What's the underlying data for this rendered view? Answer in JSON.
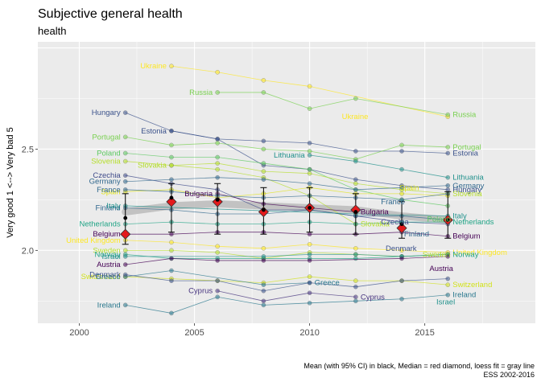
{
  "chart_data": {
    "type": "line",
    "title": "Subjective general health",
    "subtitle": "health",
    "ylabel": "Very good 1 <--> Very bad 5",
    "xlabel": "",
    "caption": [
      "Mean (with 95% CI) in black, Median = red diamond, loess fit = gray line",
      "ESS 2002-2016"
    ],
    "xlim": [
      1998.2,
      2019.8
    ],
    "ylim": [
      1.64,
      3.03
    ],
    "x_ticks": [
      2000,
      2005,
      2010,
      2015
    ],
    "y_ticks": [
      2.0,
      2.5
    ],
    "x_tick_labels": [
      "2000",
      "2005",
      "2010",
      "2015"
    ],
    "y_tick_labels": [
      "2.0",
      "2.5"
    ],
    "grid": true,
    "series": [
      {
        "name": "Ukraine",
        "color": "#fde725",
        "points": [
          [
            2004,
            2.91
          ],
          [
            2006,
            2.88
          ],
          [
            2008,
            2.84
          ],
          [
            2010,
            2.81
          ],
          [
            2016,
            2.66
          ]
        ],
        "label_start": "Ukraine",
        "label_end": "Ukraine",
        "label_end_pos": [
          2011.4,
          2.66
        ]
      },
      {
        "name": "Russia",
        "color": "#7ad151",
        "points": [
          [
            2006,
            2.78
          ],
          [
            2008,
            2.78
          ],
          [
            2010,
            2.7
          ],
          [
            2012,
            2.75
          ],
          [
            2016,
            2.67
          ]
        ],
        "label_start": "Russia",
        "label_end": "Russia"
      },
      {
        "name": "Hungary",
        "color": "#3b528b",
        "points": [
          [
            2002,
            2.68
          ],
          [
            2004,
            2.59
          ],
          [
            2006,
            2.55
          ],
          [
            2008,
            2.42
          ],
          [
            2010,
            2.4
          ],
          [
            2012,
            2.35
          ],
          [
            2014,
            2.32
          ],
          [
            2016,
            2.3
          ]
        ],
        "label_start": "Hungary",
        "label_end": "Hungary"
      },
      {
        "name": "Estonia",
        "color": "#3b528b",
        "points": [
          [
            2004,
            2.59
          ],
          [
            2006,
            2.55
          ],
          [
            2008,
            2.54
          ],
          [
            2010,
            2.53
          ],
          [
            2012,
            2.49
          ],
          [
            2014,
            2.49
          ],
          [
            2016,
            2.48
          ]
        ],
        "label_start": "Estonia",
        "label_end": "Estonia"
      },
      {
        "name": "Portugal",
        "color": "#7ad151",
        "points": [
          [
            2002,
            2.56
          ],
          [
            2004,
            2.52
          ],
          [
            2006,
            2.53
          ],
          [
            2008,
            2.5
          ],
          [
            2010,
            2.49
          ],
          [
            2012,
            2.45
          ],
          [
            2014,
            2.52
          ],
          [
            2016,
            2.51
          ]
        ],
        "label_start": "Portugal",
        "label_end": "Portugal"
      },
      {
        "name": "Poland",
        "color": "#5ec962",
        "points": [
          [
            2002,
            2.48
          ],
          [
            2004,
            2.46
          ],
          [
            2006,
            2.46
          ],
          [
            2008,
            2.43
          ],
          [
            2010,
            2.4
          ],
          [
            2012,
            2.3
          ],
          [
            2014,
            2.25
          ],
          [
            2016,
            2.22
          ]
        ],
        "label_start": "Poland",
        "label_end": "Poland",
        "label_end_pos": [
          2015.1,
          2.155
        ]
      },
      {
        "name": "Slovenia",
        "color": "#b5de2b",
        "points": [
          [
            2002,
            2.44
          ],
          [
            2004,
            2.42
          ],
          [
            2006,
            2.43
          ],
          [
            2008,
            2.39
          ],
          [
            2010,
            2.38
          ],
          [
            2012,
            2.33
          ],
          [
            2014,
            2.3
          ],
          [
            2016,
            2.28
          ]
        ],
        "label_start": "Slovenia",
        "label_end": "Slovenia"
      },
      {
        "name": "Lithuania",
        "color": "#21918c",
        "points": [
          [
            2010,
            2.47
          ],
          [
            2012,
            2.44
          ],
          [
            2014,
            2.4
          ],
          [
            2016,
            2.36
          ]
        ],
        "label_start": "Lithuania",
        "label_end": "Lithuania"
      },
      {
        "name": "Slovakia",
        "color": "#b5de2b",
        "points": [
          [
            2004,
            2.42
          ],
          [
            2006,
            2.4
          ],
          [
            2008,
            2.36
          ],
          [
            2010,
            2.27
          ],
          [
            2012,
            2.13
          ]
        ],
        "label_start": "Slovakia",
        "label_end": "Slovakia"
      },
      {
        "name": "Czechia",
        "color": "#3e4a89",
        "points": [
          [
            2002,
            2.37
          ],
          [
            2004,
            2.33
          ],
          [
            2006,
            2.3
          ],
          [
            2008,
            2.2
          ],
          [
            2010,
            2.2
          ],
          [
            2012,
            2.17
          ],
          [
            2014,
            2.14
          ],
          [
            2016,
            2.13
          ]
        ],
        "label_start": "Czechia",
        "label_end": "Czechia",
        "label_end_pos": [
          2013.1,
          2.14
        ]
      },
      {
        "name": "Germany",
        "color": "#31688e",
        "points": [
          [
            2002,
            2.34
          ],
          [
            2004,
            2.35
          ],
          [
            2006,
            2.36
          ],
          [
            2008,
            2.35
          ],
          [
            2010,
            2.33
          ],
          [
            2012,
            2.3
          ],
          [
            2014,
            2.31
          ],
          [
            2016,
            2.32
          ]
        ],
        "label_start": "Germany",
        "label_end": "Germany"
      },
      {
        "name": "Bulgaria",
        "color": "#440154",
        "points": [
          [
            2006,
            2.28
          ],
          [
            2008,
            2.23
          ],
          [
            2010,
            2.21
          ],
          [
            2012,
            2.19
          ]
        ],
        "label_start": "Bulgaria",
        "label_end": "Bulgaria"
      },
      {
        "name": "Spain",
        "color": "#e2e418",
        "points": [
          [
            2002,
            2.29
          ],
          [
            2004,
            2.3
          ],
          [
            2006,
            2.26
          ],
          [
            2008,
            2.28
          ],
          [
            2010,
            2.31
          ],
          [
            2012,
            2.28
          ],
          [
            2014,
            2.28
          ],
          [
            2016,
            2.27
          ]
        ],
        "label_start": "Spain",
        "label_end": "Spain",
        "label_end_pos": [
          2013.9,
          2.31
        ]
      },
      {
        "name": "France",
        "color": "#31688e",
        "points": [
          [
            2002,
            2.3
          ],
          [
            2004,
            2.29
          ],
          [
            2006,
            2.27
          ],
          [
            2008,
            2.26
          ],
          [
            2010,
            2.27
          ],
          [
            2012,
            2.26
          ],
          [
            2014,
            2.25
          ],
          [
            2016,
            2.28
          ]
        ],
        "label_start": "France",
        "label_end": "France",
        "label_end_pos": [
          2013.1,
          2.24
        ]
      },
      {
        "name": "Finland",
        "color": "#31688e",
        "points": [
          [
            2002,
            2.21
          ],
          [
            2004,
            2.2
          ],
          [
            2006,
            2.18
          ],
          [
            2008,
            2.18
          ],
          [
            2010,
            2.2
          ],
          [
            2012,
            2.17
          ],
          [
            2014,
            2.17
          ],
          [
            2016,
            2.15
          ]
        ],
        "label_start": "Finland",
        "label_end": "Finland",
        "label_end_pos": [
          2014.1,
          2.08
        ]
      },
      {
        "name": "Italy",
        "color": "#21918c",
        "points": [
          [
            2002,
            2.22
          ],
          [
            2012,
            2.18
          ],
          [
            2016,
            2.17
          ]
        ],
        "label_start": "Italy",
        "label_end": "Italy"
      },
      {
        "name": "Netherlands",
        "color": "#20a486",
        "points": [
          [
            2002,
            2.13
          ],
          [
            2004,
            2.14
          ],
          [
            2006,
            2.13
          ],
          [
            2008,
            2.13
          ],
          [
            2010,
            2.14
          ],
          [
            2012,
            2.13
          ],
          [
            2014,
            2.14
          ],
          [
            2016,
            2.14
          ]
        ],
        "label_start": "Netherlands",
        "label_end": "Netherlands"
      },
      {
        "name": "Belgium",
        "color": "#440154",
        "points": [
          [
            2002,
            2.08
          ],
          [
            2004,
            2.08
          ],
          [
            2006,
            2.09
          ],
          [
            2008,
            2.09
          ],
          [
            2010,
            2.08
          ],
          [
            2012,
            2.08
          ],
          [
            2014,
            2.09
          ],
          [
            2016,
            2.07
          ]
        ],
        "label_start": "Belgium",
        "label_end": "Belgium"
      },
      {
        "name": "United Kingdom",
        "color": "#fde725",
        "points": [
          [
            2002,
            2.05
          ],
          [
            2004,
            2.04
          ],
          [
            2006,
            2.02
          ],
          [
            2008,
            2.01
          ],
          [
            2010,
            2.03
          ],
          [
            2012,
            2.01
          ],
          [
            2014,
            2.0
          ],
          [
            2016,
            1.99
          ]
        ],
        "label_start": "United Kingdom",
        "label_end": "United Kingdom"
      },
      {
        "name": "Sweden",
        "color": "#b5de2b",
        "points": [
          [
            2002,
            2.0
          ],
          [
            2004,
            2.0
          ],
          [
            2006,
            1.99
          ],
          [
            2008,
            1.96
          ],
          [
            2010,
            1.99
          ],
          [
            2012,
            1.98
          ],
          [
            2014,
            1.97
          ],
          [
            2016,
            1.98
          ]
        ],
        "label_start": "Sweden",
        "label_end": "Sweden",
        "label_end_pos": [
          2014.9,
          1.98
        ]
      },
      {
        "name": "Norway",
        "color": "#20a486",
        "points": [
          [
            2002,
            1.98
          ],
          [
            2004,
            1.96
          ],
          [
            2006,
            1.96
          ],
          [
            2008,
            1.96
          ],
          [
            2010,
            1.96
          ],
          [
            2012,
            1.96
          ],
          [
            2014,
            1.97
          ],
          [
            2016,
            1.98
          ]
        ],
        "label_start": "Norway",
        "label_end": "Norway"
      },
      {
        "name": "Israel",
        "color": "#21918c",
        "points": [
          [
            2002,
            1.97
          ],
          [
            2008,
            1.97
          ],
          [
            2010,
            1.98
          ],
          [
            2012,
            1.98
          ],
          [
            2014,
            1.97
          ],
          [
            2016,
            1.98
          ]
        ],
        "label_start": "Israel",
        "label_end": "Israel",
        "label_end_pos": [
          2015.5,
          1.745
        ]
      },
      {
        "name": "Austria",
        "color": "#440154",
        "points": [
          [
            2002,
            1.93
          ],
          [
            2004,
            1.96
          ],
          [
            2006,
            1.95
          ],
          [
            2008,
            1.95
          ],
          [
            2010,
            1.95
          ],
          [
            2014,
            1.96
          ],
          [
            2016,
            1.97
          ]
        ],
        "label_start": "Austria",
        "label_end": "Austria",
        "label_end_pos": [
          2015.2,
          1.91
        ]
      },
      {
        "name": "Switzerland",
        "color": "#d2e21b",
        "points": [
          [
            2002,
            1.87
          ],
          [
            2004,
            1.86
          ],
          [
            2006,
            1.85
          ],
          [
            2008,
            1.84
          ],
          [
            2010,
            1.87
          ],
          [
            2012,
            1.85
          ],
          [
            2014,
            1.85
          ],
          [
            2016,
            1.83
          ]
        ],
        "label_start": "Switzerland",
        "label_end": "Switzerland"
      },
      {
        "name": "Greece",
        "color": "#2a788e",
        "points": [
          [
            2002,
            1.87
          ],
          [
            2004,
            1.9
          ],
          [
            2008,
            1.83
          ],
          [
            2010,
            1.84
          ]
        ],
        "label_start": "Greece",
        "label_end": "Greece"
      },
      {
        "name": "Denmark",
        "color": "#3b528b",
        "points": [
          [
            2002,
            1.88
          ],
          [
            2004,
            1.85
          ],
          [
            2006,
            1.85
          ],
          [
            2008,
            1.8
          ],
          [
            2010,
            1.84
          ],
          [
            2012,
            1.82
          ],
          [
            2014,
            1.85
          ],
          [
            2016,
            1.86
          ]
        ],
        "label_start": "Denmark",
        "label_end": "Denmark",
        "label_end_pos": [
          2013.3,
          2.01
        ]
      },
      {
        "name": "Cyprus",
        "color": "#46337e",
        "points": [
          [
            2006,
            1.8
          ],
          [
            2008,
            1.75
          ],
          [
            2010,
            1.79
          ],
          [
            2012,
            1.77
          ]
        ],
        "label_start": "Cyprus",
        "label_end": "Cyprus"
      },
      {
        "name": "Ireland",
        "color": "#2a788e",
        "points": [
          [
            2002,
            1.73
          ],
          [
            2004,
            1.69
          ],
          [
            2006,
            1.77
          ],
          [
            2008,
            1.73
          ],
          [
            2010,
            1.74
          ],
          [
            2012,
            1.75
          ],
          [
            2014,
            1.76
          ],
          [
            2016,
            1.78
          ]
        ],
        "label_start": "Ireland",
        "label_end": "Ireland"
      }
    ],
    "summary": {
      "x": [
        2002,
        2004,
        2006,
        2008,
        2010,
        2012,
        2014,
        2016
      ],
      "mean": [
        2.16,
        2.26,
        2.25,
        2.2,
        2.21,
        2.19,
        2.13,
        2.15
      ],
      "ci_low": [
        2.03,
        2.09,
        2.08,
        2.08,
        2.09,
        2.08,
        2.06,
        2.06
      ],
      "ci_high": [
        2.28,
        2.33,
        2.33,
        2.31,
        2.31,
        2.28,
        2.24,
        2.29
      ],
      "median": [
        2.08,
        2.24,
        2.24,
        2.19,
        2.21,
        2.2,
        2.11,
        2.15
      ],
      "loess": [
        2.19,
        2.22,
        2.23,
        2.22,
        2.21,
        2.2,
        2.17,
        2.15
      ]
    }
  }
}
